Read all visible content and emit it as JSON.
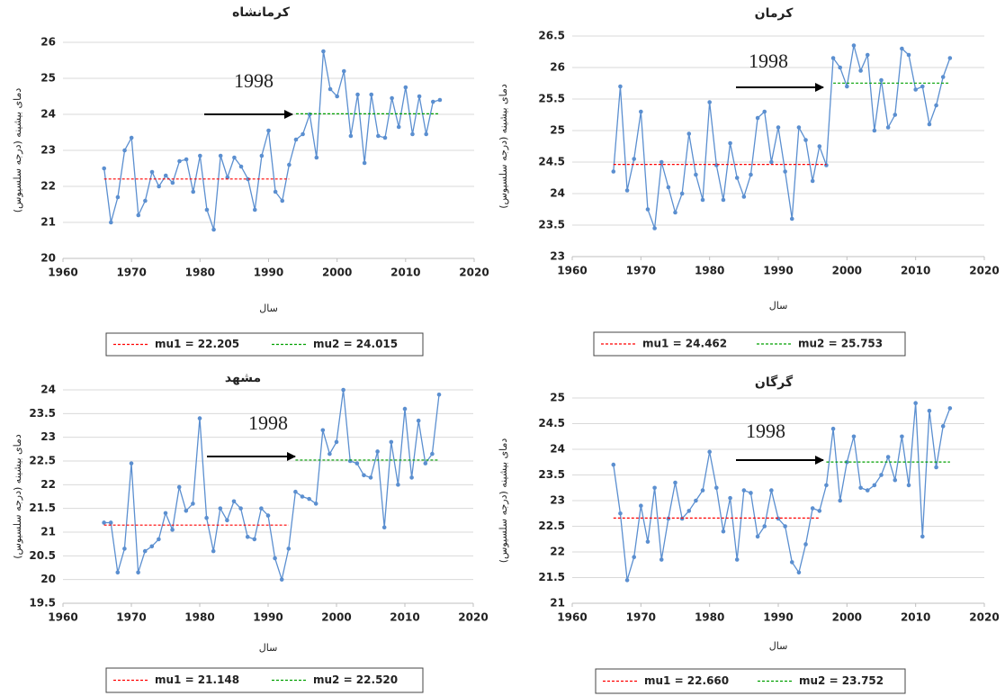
{
  "chart_data": [
    {
      "type": "line",
      "title": "کرمانشاه",
      "x_label": "سال",
      "y_label": "دمای بیشینه (درجه سلسیوس)",
      "annotation": "1998",
      "color": "#5b8fd0",
      "grid": true,
      "xlim": [
        1960,
        2020
      ],
      "xticks": [
        1960,
        1970,
        1980,
        1990,
        2000,
        2010,
        2020
      ],
      "ylim": [
        20,
        26
      ],
      "yticks": [
        20,
        21,
        22,
        23,
        24,
        25,
        26
      ],
      "x": [
        1966,
        1967,
        1968,
        1969,
        1970,
        1971,
        1972,
        1973,
        1974,
        1975,
        1976,
        1977,
        1978,
        1979,
        1980,
        1981,
        1982,
        1983,
        1984,
        1985,
        1986,
        1987,
        1988,
        1989,
        1990,
        1991,
        1992,
        1993,
        1994,
        1995,
        1996,
        1997,
        1998,
        1999,
        2000,
        2001,
        2002,
        2003,
        2004,
        2005,
        2006,
        2007,
        2008,
        2009,
        2010,
        2011,
        2012,
        2013,
        2014,
        2015
      ],
      "values": [
        22.5,
        21.0,
        21.7,
        23.0,
        23.35,
        21.2,
        21.6,
        22.4,
        22.0,
        22.3,
        22.1,
        22.7,
        22.75,
        21.85,
        22.85,
        21.35,
        20.8,
        22.85,
        22.25,
        22.8,
        22.55,
        22.2,
        21.35,
        22.85,
        23.55,
        21.85,
        21.6,
        22.6,
        23.3,
        23.45,
        24.0,
        22.8,
        25.75,
        24.7,
        24.5,
        25.2,
        23.4,
        24.55,
        22.65,
        24.55,
        23.4,
        23.35,
        24.45,
        23.65,
        24.75,
        23.45,
        24.5,
        23.45,
        24.35,
        24.4
      ],
      "reference_lines": [
        {
          "name": "mu1 = 22.205",
          "color": "#ff0000",
          "value": 22.205,
          "x": [
            1966,
            1993
          ]
        },
        {
          "name": "mu2 = 24.015",
          "color": "#00a000",
          "value": 24.015,
          "x": [
            1994,
            2015
          ]
        }
      ]
    },
    {
      "type": "line",
      "title": "کرمان",
      "x_label": "سال",
      "y_label": "دمای بیشینه (درجه سلسیوس)",
      "annotation": "1998",
      "color": "#5b8fd0",
      "grid": true,
      "xlim": [
        1960,
        2020
      ],
      "xticks": [
        1960,
        1970,
        1980,
        1990,
        2000,
        2010,
        2020
      ],
      "ylim": [
        23,
        26.5
      ],
      "yticks": [
        23,
        23.5,
        24,
        24.5,
        25,
        25.5,
        26,
        26.5
      ],
      "x": [
        1966,
        1967,
        1968,
        1969,
        1970,
        1971,
        1972,
        1973,
        1974,
        1975,
        1976,
        1977,
        1978,
        1979,
        1980,
        1981,
        1982,
        1983,
        1984,
        1985,
        1986,
        1987,
        1988,
        1989,
        1990,
        1991,
        1992,
        1993,
        1994,
        1995,
        1996,
        1997,
        1998,
        1999,
        2000,
        2001,
        2002,
        2003,
        2004,
        2005,
        2006,
        2007,
        2008,
        2009,
        2010,
        2011,
        2012,
        2013,
        2014,
        2015
      ],
      "values": [
        24.35,
        25.7,
        24.05,
        24.55,
        25.3,
        23.75,
        23.45,
        24.5,
        24.1,
        23.7,
        24.0,
        24.95,
        24.3,
        23.9,
        25.45,
        24.45,
        23.9,
        24.8,
        24.25,
        23.95,
        24.3,
        25.2,
        25.3,
        24.5,
        25.05,
        24.35,
        23.6,
        25.05,
        24.85,
        24.2,
        24.75,
        24.45,
        26.15,
        26.0,
        25.7,
        26.35,
        25.95,
        26.2,
        25.0,
        25.8,
        25.05,
        25.25,
        26.3,
        26.2,
        25.65,
        25.7,
        25.1,
        25.4,
        25.85,
        26.15
      ],
      "reference_lines": [
        {
          "name": "mu1 = 24.462",
          "color": "#ff0000",
          "value": 24.462,
          "x": [
            1966,
            1997
          ]
        },
        {
          "name": "mu2 = 25.753",
          "color": "#00a000",
          "value": 25.753,
          "x": [
            1998,
            2015
          ]
        }
      ]
    },
    {
      "type": "line",
      "title": "مشهد",
      "x_label": "سال",
      "y_label": "دمای بیشینه (درجه سلسیوس)",
      "annotation": "1998",
      "color": "#5b8fd0",
      "grid": true,
      "xlim": [
        1960,
        2020
      ],
      "xticks": [
        1960,
        1970,
        1980,
        1990,
        2000,
        2010,
        2020
      ],
      "ylim": [
        19.5,
        24
      ],
      "yticks": [
        19.5,
        20,
        20.5,
        21,
        21.5,
        22,
        22.5,
        23,
        23.5,
        24
      ],
      "x": [
        1966,
        1967,
        1968,
        1969,
        1970,
        1971,
        1972,
        1973,
        1974,
        1975,
        1976,
        1977,
        1978,
        1979,
        1980,
        1981,
        1982,
        1983,
        1984,
        1985,
        1986,
        1987,
        1988,
        1989,
        1990,
        1991,
        1992,
        1993,
        1994,
        1995,
        1996,
        1997,
        1998,
        1999,
        2000,
        2001,
        2002,
        2003,
        2004,
        2005,
        2006,
        2007,
        2008,
        2009,
        2010,
        2011,
        2012,
        2013,
        2014,
        2015
      ],
      "values": [
        21.2,
        21.2,
        20.15,
        20.65,
        22.45,
        20.15,
        20.6,
        20.7,
        20.85,
        21.4,
        21.05,
        21.95,
        21.45,
        21.6,
        23.4,
        21.3,
        20.6,
        21.5,
        21.25,
        21.65,
        21.5,
        20.9,
        20.85,
        21.5,
        21.35,
        20.45,
        20.0,
        20.65,
        21.85,
        21.75,
        21.7,
        21.6,
        23.15,
        22.65,
        22.9,
        24.0,
        22.5,
        22.45,
        22.2,
        22.15,
        22.7,
        21.1,
        22.9,
        22.0,
        23.6,
        22.15,
        23.35,
        22.45,
        22.65,
        23.9
      ],
      "reference_lines": [
        {
          "name": "mu1 = 21.148",
          "color": "#ff0000",
          "value": 21.148,
          "x": [
            1966,
            1993
          ]
        },
        {
          "name": "mu2 = 22.520",
          "color": "#00a000",
          "value": 22.52,
          "x": [
            1994,
            2015
          ]
        }
      ]
    },
    {
      "type": "line",
      "title": "گرگان",
      "x_label": "سال",
      "y_label": "دمای بیشینه (درجه سلسیوس)",
      "annotation": "1998",
      "color": "#5b8fd0",
      "grid": true,
      "xlim": [
        1960,
        2020
      ],
      "xticks": [
        1960,
        1970,
        1980,
        1990,
        2000,
        2010,
        2020
      ],
      "ylim": [
        21,
        25
      ],
      "yticks": [
        21,
        21.5,
        22,
        22.5,
        23,
        23.5,
        24,
        24.5,
        25
      ],
      "x": [
        1966,
        1967,
        1968,
        1969,
        1970,
        1971,
        1972,
        1973,
        1974,
        1975,
        1976,
        1977,
        1978,
        1979,
        1980,
        1981,
        1982,
        1983,
        1984,
        1985,
        1986,
        1987,
        1988,
        1989,
        1990,
        1991,
        1992,
        1993,
        1994,
        1995,
        1996,
        1997,
        1998,
        1999,
        2000,
        2001,
        2002,
        2003,
        2004,
        2005,
        2006,
        2007,
        2008,
        2009,
        2010,
        2011,
        2012,
        2013,
        2014,
        2015
      ],
      "values": [
        23.7,
        22.75,
        21.45,
        21.9,
        22.9,
        22.2,
        23.25,
        21.85,
        22.65,
        23.35,
        22.65,
        22.8,
        23.0,
        23.2,
        23.95,
        23.25,
        22.4,
        23.05,
        21.85,
        23.2,
        23.15,
        22.3,
        22.5,
        23.2,
        22.65,
        22.5,
        21.8,
        21.6,
        22.15,
        22.85,
        22.8,
        23.3,
        24.4,
        23.0,
        23.75,
        24.25,
        23.25,
        23.2,
        23.3,
        23.5,
        23.85,
        23.4,
        24.25,
        23.3,
        24.9,
        22.3,
        24.75,
        23.65,
        24.45,
        24.8
      ],
      "reference_lines": [
        {
          "name": "mu1 = 22.660",
          "color": "#ff0000",
          "value": 22.66,
          "x": [
            1966,
            1996
          ]
        },
        {
          "name": "mu2 = 23.752",
          "color": "#00a000",
          "value": 23.752,
          "x": [
            1997,
            2015
          ]
        }
      ]
    }
  ]
}
